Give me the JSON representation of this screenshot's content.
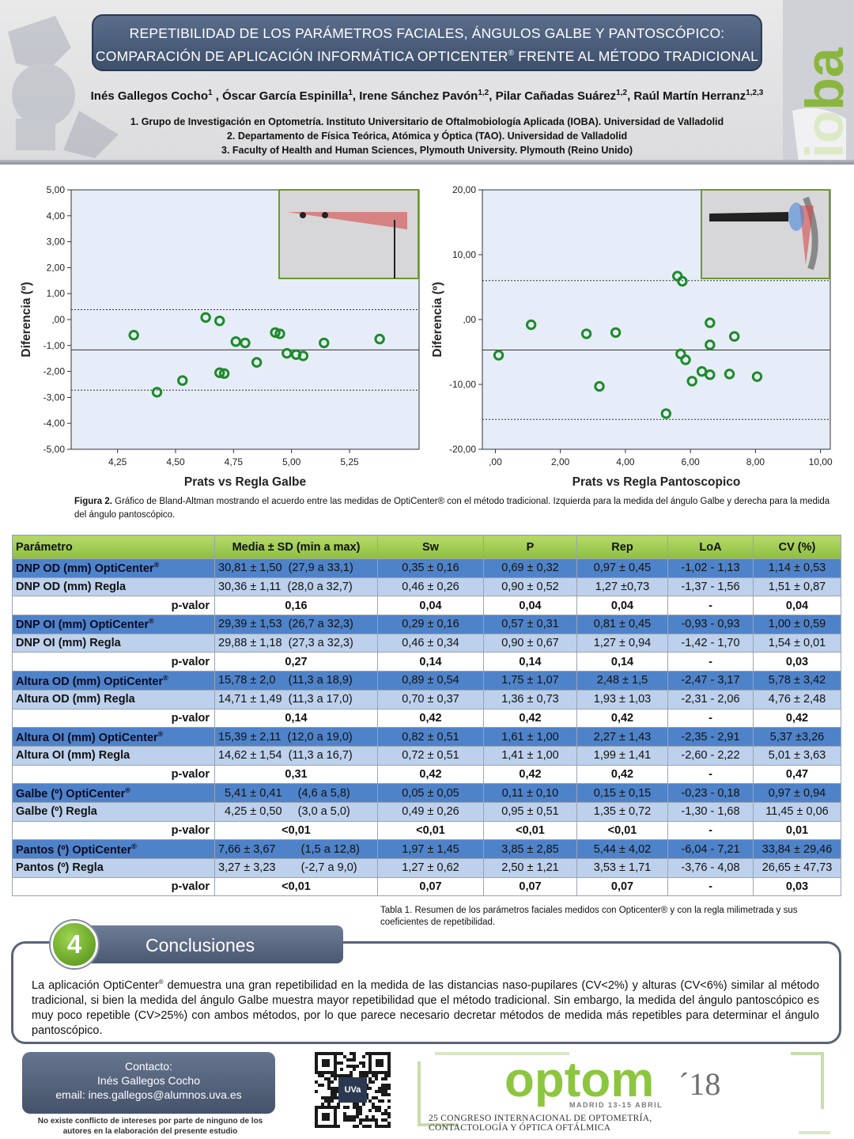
{
  "header": {
    "title_line1": "REPETIBILIDAD DE LOS PARÁMETROS FACIALES, ÁNGULOS GALBE Y PANTOSCÓPICO:",
    "title_line2_a": "COMPARACIÓN DE APLICACIÓN INFORMÁTICA OPTICENTER",
    "title_line2_sup": "®",
    "title_line2_b": " FRENTE AL MÉTODO TRADICIONAL",
    "authors": [
      {
        "name": "Inés Gallegos Cocho",
        "sup": "1",
        "sep": " , "
      },
      {
        "name": "Óscar García Espinilla",
        "sup": "1",
        "sep": ", "
      },
      {
        "name": "Irene Sánchez Pavón",
        "sup": "1,2",
        "sep": ", "
      },
      {
        "name": "Pilar Cañadas Suárez",
        "sup": "1,2",
        "sep": ", "
      },
      {
        "name": "Raúl Martín Herranz",
        "sup": "1,2,3",
        "sep": ""
      }
    ],
    "affiliations": [
      "1. Grupo de Investigación en Optometría. Instituto Universitario de Oftalmobiología Aplicada (IOBA). Universidad de Valladolid",
      "2. Departamento de Física Teórica, Atómica y Óptica (TAO). Universidad de Valladolid",
      "3. Faculty of Health and Human Sciences, Plymouth University. Plymouth (Reino Unido)"
    ],
    "logo_text": "ioba"
  },
  "chart_data": [
    {
      "type": "scatter",
      "xlabel": "Prats vs Regla Galbe",
      "ylabel": "Diferencia (º)",
      "xlim": [
        4.05,
        5.55
      ],
      "ylim": [
        -5,
        5
      ],
      "xticks": [
        "4,25",
        "4,50",
        "4,75",
        "5,00",
        "5,25"
      ],
      "xtick_values": [
        4.25,
        4.5,
        4.75,
        5.0,
        5.25
      ],
      "yticks": [
        "5,00",
        "4,00",
        "3,00",
        "2,00",
        "1,00",
        ",00",
        "-1,00",
        "-2,00",
        "-3,00",
        "-4,00",
        "-5,00"
      ],
      "ytick_values": [
        5,
        4,
        3,
        2,
        1,
        0,
        -1,
        -2,
        -3,
        -4,
        -5
      ],
      "mean_line": -1.17,
      "upper_loa": 0.38,
      "lower_loa": -2.72,
      "grid": false,
      "points": [
        {
          "x": 4.32,
          "y": -0.6
        },
        {
          "x": 4.42,
          "y": -2.8
        },
        {
          "x": 4.53,
          "y": -2.35
        },
        {
          "x": 4.63,
          "y": 0.08
        },
        {
          "x": 4.69,
          "y": -0.05
        },
        {
          "x": 4.69,
          "y": -2.05
        },
        {
          "x": 4.71,
          "y": -2.08
        },
        {
          "x": 4.76,
          "y": -0.85
        },
        {
          "x": 4.8,
          "y": -0.9
        },
        {
          "x": 4.85,
          "y": -1.65
        },
        {
          "x": 4.93,
          "y": -0.5
        },
        {
          "x": 4.95,
          "y": -0.55
        },
        {
          "x": 4.98,
          "y": -1.3
        },
        {
          "x": 5.02,
          "y": -1.35
        },
        {
          "x": 5.05,
          "y": -1.4
        },
        {
          "x": 5.14,
          "y": -0.9
        },
        {
          "x": 5.38,
          "y": -0.75
        }
      ]
    },
    {
      "type": "scatter",
      "xlabel": "Prats vs Regla Pantoscopico",
      "ylabel": "Diferencia (º)",
      "xlim": [
        -0.4,
        10.3
      ],
      "ylim": [
        -20,
        20
      ],
      "xticks": [
        ",00",
        "2,00",
        "4,00",
        "6,00",
        "8,00",
        "10,00"
      ],
      "xtick_values": [
        0,
        2,
        4,
        6,
        8,
        10
      ],
      "yticks": [
        "20,00",
        "10,00",
        ",00",
        "-10,00",
        "-20,00"
      ],
      "ytick_values": [
        20,
        10,
        0,
        -10,
        -20
      ],
      "mean_line": -4.7,
      "upper_loa": 6.0,
      "lower_loa": -15.4,
      "grid": false,
      "points": [
        {
          "x": 0.1,
          "y": -5.5
        },
        {
          "x": 1.1,
          "y": -0.8
        },
        {
          "x": 2.8,
          "y": -2.2
        },
        {
          "x": 3.2,
          "y": -10.3
        },
        {
          "x": 3.7,
          "y": -2.0
        },
        {
          "x": 5.25,
          "y": -14.5
        },
        {
          "x": 5.6,
          "y": 6.7
        },
        {
          "x": 5.75,
          "y": 5.9
        },
        {
          "x": 5.7,
          "y": -5.3
        },
        {
          "x": 5.85,
          "y": -6.2
        },
        {
          "x": 6.05,
          "y": -9.5
        },
        {
          "x": 6.35,
          "y": -8.0
        },
        {
          "x": 6.6,
          "y": -8.5
        },
        {
          "x": 6.6,
          "y": -0.5
        },
        {
          "x": 6.6,
          "y": -3.9
        },
        {
          "x": 7.2,
          "y": -8.4
        },
        {
          "x": 7.35,
          "y": -2.6
        },
        {
          "x": 8.05,
          "y": -8.8
        }
      ]
    }
  ],
  "figure_caption_label": "Figura 2.",
  "figure_caption": " Gráfico de Bland-Altman mostrando el acuerdo entre las medidas de OptiCenter® con el método tradicional. Izquierda para la medida del ángulo Galbe y derecha para la medida del ángulo pantoscópico.",
  "table": {
    "headers": [
      "Parámetro",
      "Media ± SD (min a max)",
      "Sw",
      "P",
      "Rep",
      "LoA",
      "CV (%)"
    ],
    "rows": [
      {
        "kind": "oc",
        "param": "DNP OD (mm) OptiCenter",
        "sup": "®",
        "media": "30,81 ± 1,50  (27,9 a 33,1)",
        "sw": "0,35 ± 0,16",
        "p": "0,69 ± 0,32",
        "rep": "0,97 ± 0,45",
        "loa": "-1,02 - 1,13",
        "cv": "1,14 ± 0,53"
      },
      {
        "kind": "rg",
        "param": "DNP OD (mm) Regla",
        "sup": "",
        "media": "30,36 ± 1,11  (28,0 a 32,7)",
        "sw": "0,46 ± 0,26",
        "p": "0,90 ± 0,52",
        "rep": "1,27 ±0,73",
        "loa": "-1,37 - 1,56",
        "cv": "1,51 ± 0,87"
      },
      {
        "kind": "pv",
        "param": "p-valor",
        "sup": "",
        "media": "0,16",
        "sw": "0,04",
        "p": "0,04",
        "rep": "0,04",
        "loa": "-",
        "cv": "0,04"
      },
      {
        "kind": "oc",
        "param": "DNP OI (mm) OptiCenter",
        "sup": "®",
        "media": "29,39 ± 1,53  (26,7 a 32,3)",
        "sw": "0,29 ± 0,16",
        "p": "0,57 ± 0,31",
        "rep": "0,81 ± 0,45",
        "loa": "-0,93 - 0,93",
        "cv": "1,00 ± 0,59"
      },
      {
        "kind": "rg",
        "param": "DNP OI (mm) Regla",
        "sup": "",
        "media": "29,88 ± 1,18  (27,3 a 32,3)",
        "sw": "0,46 ± 0,34",
        "p": "0,90 ± 0,67",
        "rep": "1,27 ± 0,94",
        "loa": "-1,42 - 1,70",
        "cv": "1,54 ± 0,01"
      },
      {
        "kind": "pv",
        "param": "p-valor",
        "sup": "",
        "media": "0,27",
        "sw": "0,14",
        "p": "0,14",
        "rep": "0,14",
        "loa": "-",
        "cv": "0,03"
      },
      {
        "kind": "oc",
        "param": "Altura OD (mm) OptiCenter",
        "sup": "®",
        "media": "15,78 ± 2,0    (11,3 a 18,9)",
        "sw": "0,89 ± 0,54",
        "p": "1,75 ± 1,07",
        "rep": "2,48 ± 1,5",
        "loa": "-2,47 - 3,17",
        "cv": "5,78 ± 3,42"
      },
      {
        "kind": "rg",
        "param": "Altura OD (mm) Regla",
        "sup": "",
        "media": "14,71 ± 1,49  (11,3 a 17,0)",
        "sw": "0,70 ± 0,37",
        "p": "1,36 ± 0,73",
        "rep": "1,93 ± 1,03",
        "loa": "-2,31 - 2,06",
        "cv": "4,76 ± 2,48"
      },
      {
        "kind": "pv",
        "param": "p-valor",
        "sup": "",
        "media": "0,14",
        "sw": "0,42",
        "p": "0,42",
        "rep": "0,42",
        "loa": "-",
        "cv": "0,42"
      },
      {
        "kind": "oc",
        "param": "Altura OI (mm) OptiCenter",
        "sup": "®",
        "media": "15,39 ± 2,11  (12,0 a 19,0)",
        "sw": "0,82 ± 0,51",
        "p": "1,61 ± 1,00",
        "rep": "2,27 ± 1,43",
        "loa": "-2,35 - 2,91",
        "cv": "5,37 ±3,26"
      },
      {
        "kind": "rg",
        "param": "Altura OI (mm) Regla",
        "sup": "",
        "media": "14,62 ± 1,54  (11,3 a 16,7)",
        "sw": "0,72 ± 0,51",
        "p": "1,41 ± 1,00",
        "rep": "1,99 ± 1,41",
        "loa": "-2,60 - 2,22",
        "cv": "5,01 ± 3,63"
      },
      {
        "kind": "pv",
        "param": "p-valor",
        "sup": "",
        "media": "0,31",
        "sw": "0,42",
        "p": "0,42",
        "rep": "0,42",
        "loa": "-",
        "cv": "0,47"
      },
      {
        "kind": "oc",
        "param": "Galbe (º) OptiCenter",
        "sup": "®",
        "media": "  5,41 ± 0,41     (4,6 a 5,8)",
        "sw": "0,05 ± 0,05",
        "p": "0,11 ± 0,10",
        "rep": "0,15 ± 0,15",
        "loa": "-0,23 - 0,18",
        "cv": "0,97 ± 0,94"
      },
      {
        "kind": "rg",
        "param": "Galbe (º) Regla",
        "sup": "",
        "media": "  4,25 ± 0,50     (3,0 a 5,0)",
        "sw": "0,49 ± 0,26",
        "p": "0,95 ± 0,51",
        "rep": "1,35 ± 0,72",
        "loa": "-1,30 - 1,68",
        "cv": "11,45 ± 0,06"
      },
      {
        "kind": "pv",
        "param": "p-valor",
        "sup": "",
        "media": "<0,01",
        "sw": "<0,01",
        "p": "<0,01",
        "rep": "<0,01",
        "loa": "-",
        "cv": "0,01"
      },
      {
        "kind": "oc",
        "param": "Pantos (º) OptiCenter",
        "sup": "®",
        "media": "7,66 ± 3,67        (1,5 a 12,8)",
        "sw": "1,97 ± 1,45",
        "p": "3,85 ± 2,85",
        "rep": "5,44 ± 4,02",
        "loa": "-6,04 - 7,21",
        "cv": "33,84 ± 29,46"
      },
      {
        "kind": "rg",
        "param": "Pantos (º) Regla",
        "sup": "",
        "media": "3,27 ± 3,23        (-2,7 a 9,0)",
        "sw": "1,27 ± 0,62",
        "p": "2,50 ± 1,21",
        "rep": "3,53 ± 1,71",
        "loa": "-3,76 - 4,08",
        "cv": "26,65 ± 47,73"
      },
      {
        "kind": "pv",
        "param": "p-valor",
        "sup": "",
        "media": "<0,01",
        "sw": "0,07",
        "p": "0,07",
        "rep": "0,07",
        "loa": "-",
        "cv": "0,03"
      }
    ]
  },
  "table_caption": "Tabla 1. Resumen de los parámetros faciales medidos con Opticenter® y con la regla milimetrada y sus coeficientes de repetibilidad.",
  "conclusions": {
    "number": "4",
    "title": "Conclusiones",
    "text_a": "La aplicación OptiCenter",
    "text_sup": "®",
    "text_b": " demuestra una gran repetibilidad en la medida de las distancias naso-pupilares (CV<2%) y alturas (CV<6%) similar al método tradicional, si bien la medida del ángulo Galbe muestra mayor repetibilidad que el método tradicional. Sin embargo, la medida del ángulo pantoscópico es muy poco repetible (CV>25%) con ambos métodos, por lo que parece necesario decretar métodos de medida más repetibles para determinar el ángulo pantoscópico."
  },
  "contact": {
    "heading": "Contacto:",
    "name": "Inés Gallegos Cocho",
    "email": "email: ines.gallegos@alumnos.uva.es",
    "conflict": "No existe conflicto de intereses por parte de ninguno de los autores en la elaboración del presente estudio"
  },
  "qr_label": "UVa",
  "congress": {
    "logo_main": "optom",
    "logo_year": "´18",
    "date": "MADRID 13-15 ABRIL",
    "line1": "25 CONGRESO INTERNACIONAL DE OPTOMETRÍA,",
    "line2": "CONTACTOLOGÍA Y ÓPTICA OFTÁLMICA"
  },
  "colors": {
    "point_stroke": "#1e8a2a",
    "plot_border": "#6b9a2f",
    "plot_bg": "#e6edf8",
    "title_bg": "#4a5c7a",
    "table_header": "#9ccc4f",
    "row_opticenter": "#4f83c9",
    "row_regla": "#bdd1ec",
    "accent_green": "#8cc63f"
  }
}
